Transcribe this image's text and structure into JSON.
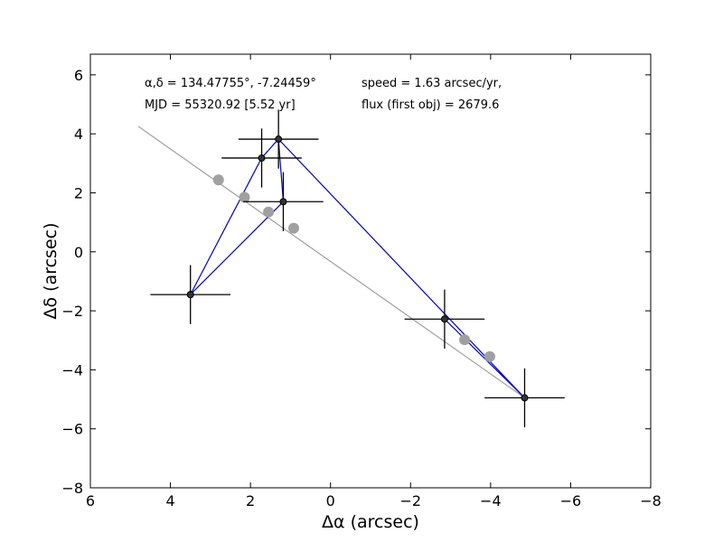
{
  "chart_data": {
    "type": "scatter",
    "title": "",
    "xlabel": "Δα (arcsec)",
    "ylabel": "Δδ (arcsec)",
    "xlim": [
      6,
      -8
    ],
    "ylim": [
      -8,
      6.7
    ],
    "x_inverted": true,
    "grid": false,
    "x_ticks": [
      6,
      4,
      2,
      0,
      -2,
      -4,
      -6,
      -8
    ],
    "y_ticks": [
      -8,
      -6,
      -4,
      -2,
      0,
      2,
      4,
      6
    ],
    "x_tick_labels": [
      "6",
      "4",
      "2",
      "0",
      "−2",
      "−4",
      "−6",
      "−8"
    ],
    "y_tick_labels": [
      "−8",
      "−6",
      "−4",
      "−2",
      "0",
      "2",
      "4",
      "6"
    ],
    "annotations": [
      "α,δ = 134.47755°, -7.24459°",
      "MJD = 55320.92 [5.52 yr]",
      "speed = 1.63 arcsec/yr,",
      "flux (first obj) = 2679.6"
    ],
    "series": [
      {
        "color": "#0000cc",
        "marker": "black-dot-with-errorbars",
        "points": [
          {
            "x": 3.5,
            "y": -1.45,
            "xerr": 1.0,
            "yerr": 1.0
          },
          {
            "x": 1.72,
            "y": 3.18,
            "xerr": 1.0,
            "yerr": 1.0
          },
          {
            "x": 1.3,
            "y": 3.82,
            "xerr": 1.0,
            "yerr": 1.0
          },
          {
            "x": 1.18,
            "y": 1.7,
            "xerr": 1.0,
            "yerr": 1.0
          },
          {
            "x": 3.5,
            "y": -1.45,
            "xerr": 0,
            "yerr": 0
          },
          {
            "x": -2.85,
            "y": -2.28,
            "xerr": 1.0,
            "yerr": 1.0
          },
          {
            "x": -4.85,
            "y": -4.95,
            "xerr": 1.0,
            "yerr": 1.0
          }
        ],
        "line_order": [
          [
            1.18,
            1.7
          ],
          [
            3.5,
            -1.45
          ],
          [
            1.72,
            3.18
          ],
          [
            1.3,
            3.82
          ],
          [
            1.18,
            1.7
          ],
          [
            1.3,
            3.82
          ],
          [
            -4.85,
            -4.95
          ],
          [
            -2.85,
            -2.28
          ]
        ]
      },
      {
        "color": "#a0a0a0",
        "marker": "gray-circle",
        "points": [
          {
            "x": 2.8,
            "y": 2.44
          },
          {
            "x": 2.15,
            "y": 1.85
          },
          {
            "x": 1.55,
            "y": 1.35
          },
          {
            "x": 0.92,
            "y": 0.8
          },
          {
            "x": -3.35,
            "y": -2.98
          },
          {
            "x": -3.98,
            "y": -3.55
          }
        ],
        "trend_line": [
          [
            4.8,
            4.25
          ],
          [
            -4.85,
            -4.95
          ]
        ]
      }
    ]
  }
}
